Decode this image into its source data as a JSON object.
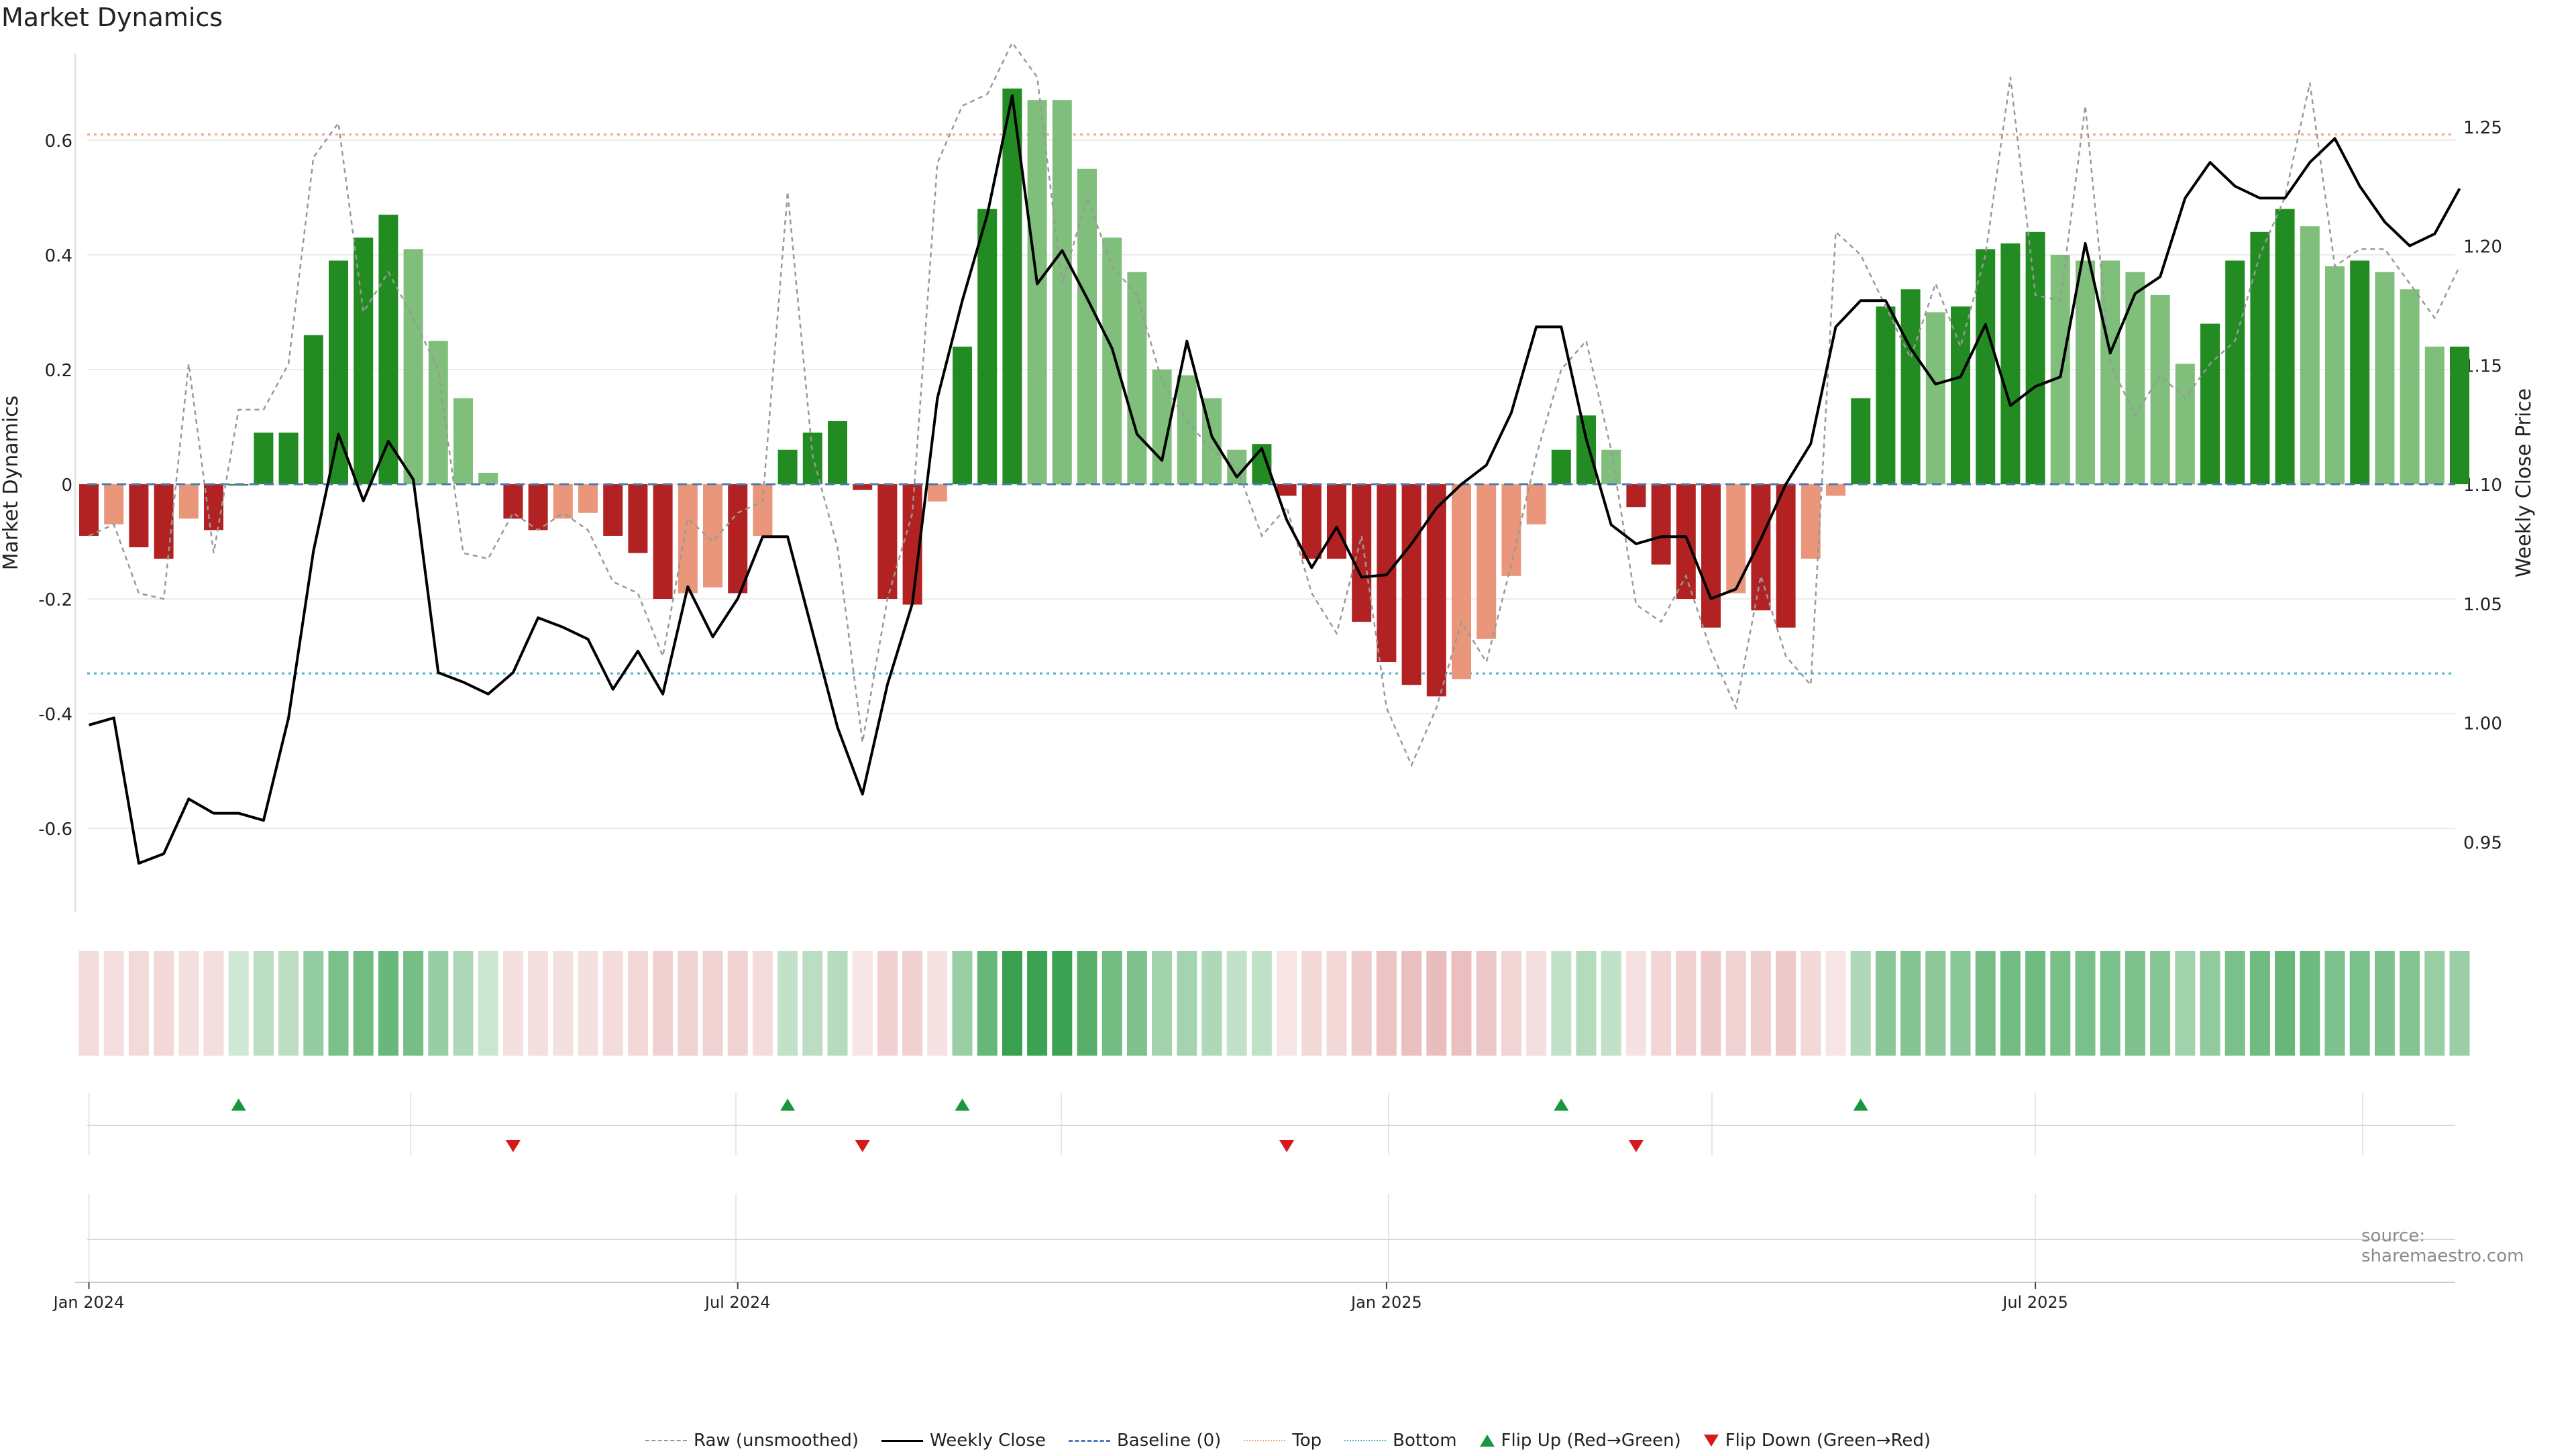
{
  "title": "Market Dynamics",
  "source": "source: sharemaestro.com",
  "colors": {
    "strong_green": "#228b22",
    "light_green": "#7fbf7b",
    "strong_red": "#b22222",
    "light_red": "#e9967a",
    "top_line": "#f4a582",
    "bottom_line": "#4fb3c8",
    "baseline": "#4a7bb7",
    "price_line": "#000000",
    "raw_line": "#999999",
    "flip_up": "#1a9641",
    "flip_down": "#d7191c"
  },
  "legend": {
    "raw": "Raw (unsmoothed)",
    "close": "Weekly Close",
    "baseline": "Baseline (0)",
    "top": "Top",
    "bottom": "Bottom",
    "flip_up": "Flip Up (Red→Green)",
    "flip_down": "Flip Down (Green→Red)"
  },
  "chart_data": {
    "type": "bar",
    "title": "Market Dynamics",
    "ylabel": "Market Dynamics",
    "ylabel_right": "Weekly Close Price",
    "ylim": [
      -0.74,
      0.75
    ],
    "ylim_right": [
      0.92,
      1.28
    ],
    "yticks_left": [
      -0.6,
      -0.4,
      -0.2,
      0,
      0.2,
      0.4,
      0.6
    ],
    "ytick_labels_left": [
      "-0.6",
      "-0.4",
      "-0.2",
      "0",
      "0.2",
      "0.4",
      "0.6"
    ],
    "yticks_right": [
      0.95,
      1.0,
      1.05,
      1.1,
      1.15,
      1.2,
      1.25
    ],
    "ytick_labels_right": [
      "0.95",
      "1.00",
      "1.05",
      "1.10",
      "1.15",
      "1.20",
      "1.25"
    ],
    "x_ticks": [
      {
        "week": 0,
        "label": "Jan 2024"
      },
      {
        "week": 26,
        "label": "Jul 2024"
      },
      {
        "week": 52,
        "label": "Jan 2025"
      },
      {
        "week": 78,
        "label": "Jul 2025"
      }
    ],
    "top_level": 0.61,
    "bottom_level": -0.33,
    "baseline": 0,
    "series": [
      {
        "name": "Market Dynamics",
        "values": [
          -0.09,
          -0.07,
          -0.11,
          -0.13,
          -0.06,
          -0.08,
          0,
          0.09,
          0.09,
          0.26,
          0.39,
          0.43,
          0.47,
          0.41,
          0.25,
          0.15,
          0.02,
          -0.06,
          -0.08,
          -0.06,
          -0.05,
          -0.09,
          -0.12,
          -0.2,
          -0.19,
          -0.18,
          -0.19,
          -0.09,
          0.06,
          0.09,
          0.11,
          -0.01,
          -0.2,
          -0.21,
          -0.03,
          0.24,
          0.48,
          0.69,
          0.67,
          0.67,
          0.55,
          0.43,
          0.37,
          0.2,
          0.19,
          0.15,
          0.06,
          0.07,
          -0.02,
          -0.13,
          -0.13,
          -0.24,
          -0.31,
          -0.35,
          -0.37,
          -0.34,
          -0.27,
          -0.16,
          -0.07,
          0.06,
          0.12,
          0.06,
          -0.04,
          -0.14,
          -0.2,
          -0.25,
          -0.19,
          -0.22,
          -0.25,
          -0.13,
          -0.02,
          0.15,
          0.31,
          0.34,
          0.3,
          0.31,
          0.41,
          0.42,
          0.44,
          0.4,
          0.39,
          0.39,
          0.37,
          0.33,
          0.21,
          0.28,
          0.39,
          0.44,
          0.48,
          0.45,
          0.38,
          0.39,
          0.37,
          0.34,
          0.24,
          0.24
        ],
        "strength": [
          "s",
          "l",
          "s",
          "s",
          "l",
          "s",
          "s",
          "s",
          "s",
          "s",
          "s",
          "s",
          "s",
          "l",
          "l",
          "l",
          "l",
          "s",
          "s",
          "l",
          "l",
          "s",
          "s",
          "s",
          "l",
          "l",
          "s",
          "l",
          "s",
          "s",
          "s",
          "s",
          "s",
          "s",
          "l",
          "s",
          "s",
          "s",
          "l",
          "l",
          "l",
          "l",
          "l",
          "l",
          "l",
          "l",
          "l",
          "s",
          "s",
          "s",
          "s",
          "s",
          "s",
          "s",
          "s",
          "l",
          "l",
          "l",
          "l",
          "s",
          "s",
          "l",
          "s",
          "s",
          "s",
          "s",
          "l",
          "s",
          "s",
          "l",
          "l",
          "s",
          "s",
          "s",
          "l",
          "s",
          "s",
          "s",
          "s",
          "l",
          "l",
          "l",
          "l",
          "l",
          "l",
          "s",
          "s",
          "s",
          "s",
          "l",
          "l",
          "s",
          "l",
          "l",
          "l",
          "s"
        ]
      },
      {
        "name": "Raw (unsmoothed)",
        "values": [
          -0.09,
          -0.07,
          -0.19,
          -0.2,
          0.21,
          -0.12,
          0.13,
          0.13,
          0.21,
          0.57,
          0.63,
          0.3,
          0.37,
          0.29,
          0.2,
          -0.12,
          -0.13,
          -0.05,
          -0.08,
          -0.05,
          -0.08,
          -0.17,
          -0.19,
          -0.3,
          -0.06,
          -0.1,
          -0.05,
          -0.03,
          0.51,
          0.05,
          -0.11,
          -0.45,
          -0.2,
          -0.05,
          0.56,
          0.66,
          0.68,
          0.77,
          0.71,
          0.35,
          0.5,
          0.38,
          0.33,
          0.18,
          0.11,
          0.06,
          0.03,
          -0.09,
          -0.04,
          -0.19,
          -0.26,
          -0.09,
          -0.39,
          -0.49,
          -0.39,
          -0.24,
          -0.31,
          -0.14,
          0.05,
          0.2,
          0.25,
          0.06,
          -0.21,
          -0.24,
          -0.16,
          -0.29,
          -0.39,
          -0.16,
          -0.3,
          -0.35,
          0.44,
          0.4,
          0.31,
          0.22,
          0.35,
          0.24,
          0.4,
          0.71,
          0.33,
          0.32,
          0.66,
          0.21,
          0.12,
          0.19,
          0.15,
          0.21,
          0.25,
          0.4,
          0.5,
          0.7,
          0.38,
          0.41,
          0.41,
          0.35,
          0.29,
          0.38
        ]
      },
      {
        "name": "Weekly Close",
        "values": [
          0.999,
          1.002,
          0.941,
          0.945,
          0.968,
          0.962,
          0.962,
          0.959,
          1.002,
          1.072,
          1.121,
          1.093,
          1.118,
          1.102,
          1.021,
          1.017,
          1.012,
          1.021,
          1.044,
          1.04,
          1.035,
          1.014,
          1.03,
          1.012,
          1.057,
          1.036,
          1.052,
          1.078,
          1.078,
          1.038,
          0.998,
          0.97,
          1.016,
          1.05,
          1.136,
          1.177,
          1.213,
          1.263,
          1.184,
          1.198,
          1.178,
          1.157,
          1.121,
          1.11,
          1.16,
          1.12,
          1.103,
          1.115,
          1.085,
          1.065,
          1.082,
          1.061,
          1.062,
          1.075,
          1.09,
          1.1,
          1.108,
          1.13,
          1.166,
          1.166,
          1.119,
          1.083,
          1.075,
          1.078,
          1.078,
          1.052,
          1.056,
          1.077,
          1.1,
          1.117,
          1.166,
          1.177,
          1.177,
          1.157,
          1.142,
          1.145,
          1.167,
          1.133,
          1.141,
          1.145,
          1.201,
          1.155,
          1.18,
          1.187,
          1.22,
          1.235,
          1.225,
          1.22,
          1.22,
          1.235,
          1.245,
          1.225,
          1.21,
          1.2,
          1.205,
          1.224
        ]
      }
    ],
    "flips_up": [
      6,
      28,
      35,
      59,
      71
    ],
    "flips_down": [
      17,
      31,
      48,
      62
    ]
  }
}
